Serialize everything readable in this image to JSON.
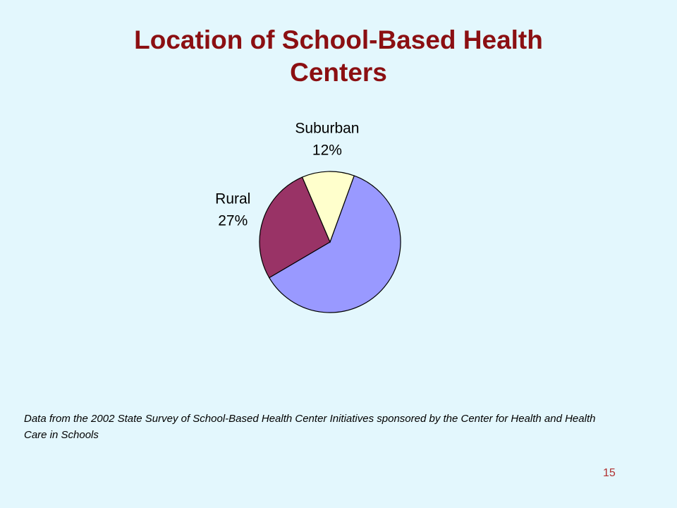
{
  "chart_data": {
    "type": "pie",
    "title": "Location of School-Based Health Centers",
    "categories": [
      null,
      "Rural",
      "Suburban"
    ],
    "values": [
      61,
      27,
      12
    ],
    "value_labels": [
      null,
      "27%",
      "12%"
    ],
    "colors": [
      "#9999ff",
      "#993366",
      "#ffffcc"
    ]
  },
  "source_note": "Data from the 2002 State Survey of School-Based Health Center Initiatives sponsored by the Center for Health and Health Care in Schools",
  "page_number": 15
}
